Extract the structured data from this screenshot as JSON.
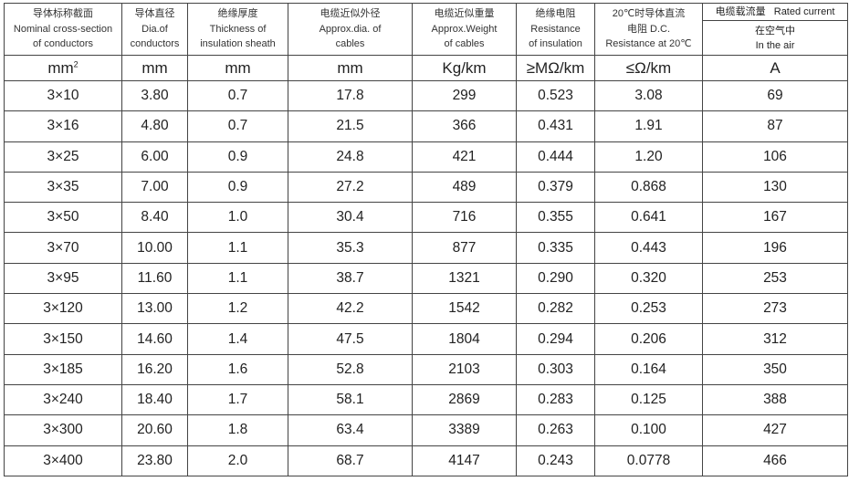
{
  "headers": [
    {
      "cn": "导体标称截面",
      "en1": "Nominal cross-section",
      "en2": "of conductors"
    },
    {
      "cn": "导体直径",
      "en1": "Dia.of",
      "en2": "conductors"
    },
    {
      "cn": "绝缘厚度",
      "en1": "Thickness of",
      "en2": "insulation sheath"
    },
    {
      "cn": "电缆近似外径",
      "en1": "Approx.dia. of",
      "en2": "cables"
    },
    {
      "cn": "电缆近似重量",
      "en1": "Approx.Weight",
      "en2": "of cables"
    },
    {
      "cn": "绝缘电阻",
      "en1": "Resistance",
      "en2": "of insulation"
    },
    {
      "cn": "20℃时导体直流",
      "en1": "电阻 D.C.",
      "en2": "Resistance at 20℃"
    }
  ],
  "rated": {
    "top": "电缆载流量   Rated current",
    "cn": "在空气中",
    "en": "In the air"
  },
  "units": [
    "mm",
    "mm",
    "mm",
    "mm",
    "Kg/km",
    "≥MΩ/km",
    "≤Ω/km",
    "A"
  ],
  "unit_first_sup": "2",
  "rows": [
    [
      "3×10",
      "3.80",
      "0.7",
      "17.8",
      "299",
      "0.523",
      "3.08",
      "69"
    ],
    [
      "3×16",
      "4.80",
      "0.7",
      "21.5",
      "366",
      "0.431",
      "1.91",
      "87"
    ],
    [
      "3×25",
      "6.00",
      "0.9",
      "24.8",
      "421",
      "0.444",
      "1.20",
      "106"
    ],
    [
      "3×35",
      "7.00",
      "0.9",
      "27.2",
      "489",
      "0.379",
      "0.868",
      "130"
    ],
    [
      "3×50",
      "8.40",
      "1.0",
      "30.4",
      "716",
      "0.355",
      "0.641",
      "167"
    ],
    [
      "3×70",
      "10.00",
      "1.1",
      "35.3",
      "877",
      "0.335",
      "0.443",
      "196"
    ],
    [
      "3×95",
      "11.60",
      "1.1",
      "38.7",
      "1321",
      "0.290",
      "0.320",
      "253"
    ],
    [
      "3×120",
      "13.00",
      "1.2",
      "42.2",
      "1542",
      "0.282",
      "0.253",
      "273"
    ],
    [
      "3×150",
      "14.60",
      "1.4",
      "47.5",
      "1804",
      "0.294",
      "0.206",
      "312"
    ],
    [
      "3×185",
      "16.20",
      "1.6",
      "52.8",
      "2103",
      "0.303",
      "0.164",
      "350"
    ],
    [
      "3×240",
      "18.40",
      "1.7",
      "58.1",
      "2869",
      "0.283",
      "0.125",
      "388"
    ],
    [
      "3×300",
      "20.60",
      "1.8",
      "63.4",
      "3389",
      "0.263",
      "0.100",
      "427"
    ],
    [
      "3×400",
      "23.80",
      "2.0",
      "68.7",
      "4147",
      "0.243",
      "0.0778",
      "466"
    ]
  ]
}
